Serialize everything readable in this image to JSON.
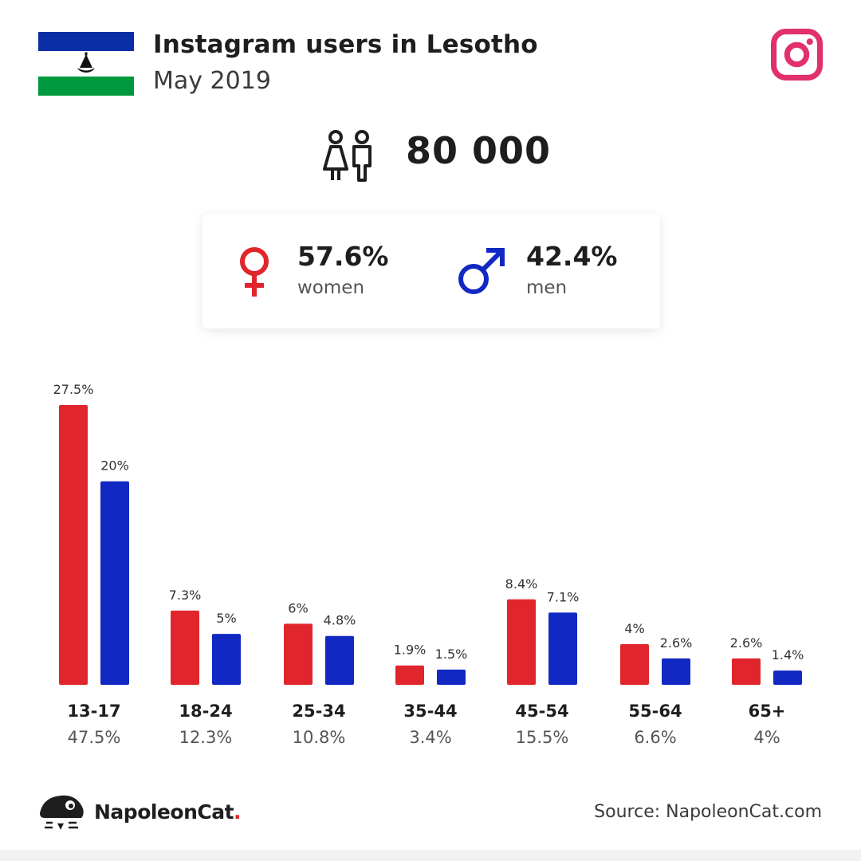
{
  "header": {
    "title": "Instagram users in Lesotho",
    "subtitle": "May 2019"
  },
  "total_users": "80 000",
  "gender": {
    "women_pct": "57.6%",
    "women_label": "women",
    "men_pct": "42.4%",
    "men_label": "men"
  },
  "colors": {
    "women": "#e0262c",
    "men": "#1228c2",
    "instagram": "#e1306c"
  },
  "chart_data": {
    "type": "bar",
    "categories": [
      "13-17",
      "18-24",
      "25-34",
      "35-44",
      "45-54",
      "55-64",
      "65+"
    ],
    "series": [
      {
        "values": [
          27.5,
          7.3,
          6,
          1.9,
          8.4,
          4,
          2.6
        ],
        "labels": [
          "27.5%",
          "7.3%",
          "6%",
          "1.9%",
          "8.4%",
          "4%",
          "2.6%"
        ]
      },
      {
        "values": [
          20,
          5,
          4.8,
          1.5,
          7.1,
          2.6,
          1.4
        ],
        "labels": [
          "20%",
          "5%",
          "4.8%",
          "1.5%",
          "7.1%",
          "2.6%",
          "1.4%"
        ]
      }
    ],
    "totals": [
      "47.5%",
      "12.3%",
      "10.8%",
      "3.4%",
      "15.5%",
      "6.6%",
      "4%"
    ],
    "ylim": [
      0,
      27.5
    ],
    "grid": false
  },
  "footer": {
    "brand_name": "NapoleonCat",
    "brand_dot": ".",
    "source": "Source: NapoleonCat.com"
  }
}
